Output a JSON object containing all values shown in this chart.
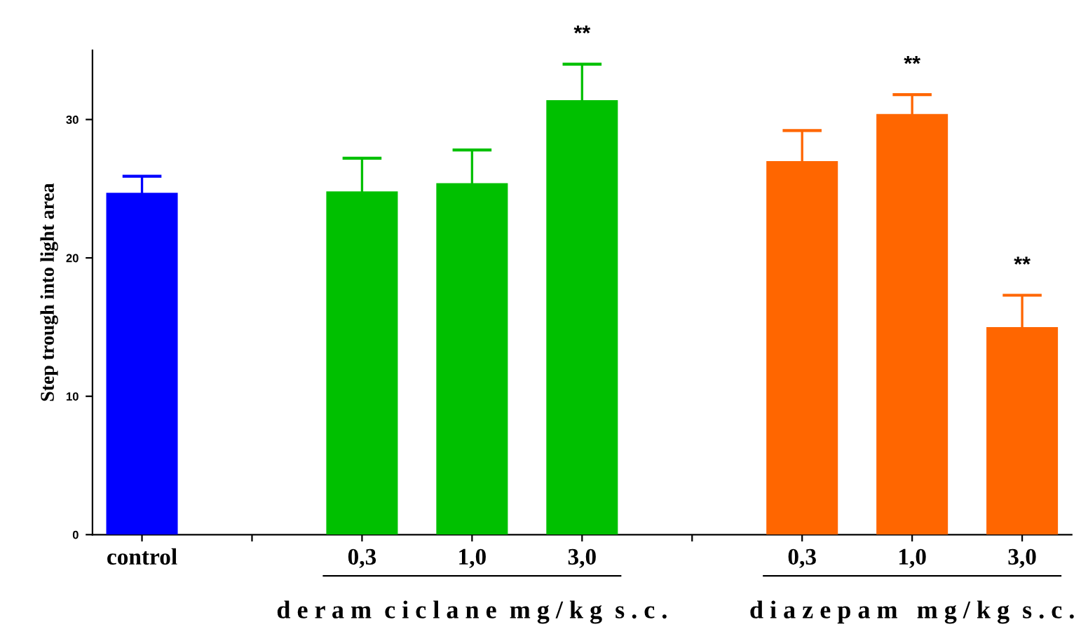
{
  "chart_data": {
    "type": "bar",
    "ylabel": "Step trough into light area",
    "categories": [
      "control",
      null,
      "0,3",
      "1,0",
      "3,0",
      null,
      "0,3",
      "1,0",
      "3,0"
    ],
    "series": [
      {
        "color": "#0000ff",
        "values": [
          24.7,
          null,
          null,
          null,
          null,
          null,
          null,
          null,
          null
        ],
        "errors": [
          1.2,
          null,
          null,
          null,
          null,
          null,
          null,
          null,
          null
        ]
      },
      {
        "color": "#00c000",
        "values": [
          null,
          null,
          24.8,
          25.4,
          31.4,
          null,
          null,
          null,
          null
        ],
        "errors": [
          null,
          null,
          2.4,
          2.4,
          2.6,
          null,
          null,
          null,
          null
        ],
        "value_labels": [
          null,
          null,
          null,
          null,
          "**",
          null,
          null,
          null,
          null
        ]
      },
      {
        "color": "#ff6600",
        "values": [
          null,
          null,
          null,
          null,
          null,
          null,
          27.0,
          30.4,
          15.0
        ],
        "errors": [
          null,
          null,
          null,
          null,
          null,
          null,
          2.2,
          1.4,
          2.3
        ],
        "value_labels": [
          null,
          null,
          null,
          null,
          null,
          null,
          null,
          "**",
          "**"
        ]
      }
    ],
    "annotations": [
      "d e r a m  c i c l a n e  m g / k g  s . c .",
      "d i a z e p a m   m g / k g  s . c ."
    ],
    "ylim": [
      0,
      35
    ],
    "yticks": [
      0,
      10,
      20,
      30
    ],
    "grid": false,
    "legend": false
  }
}
